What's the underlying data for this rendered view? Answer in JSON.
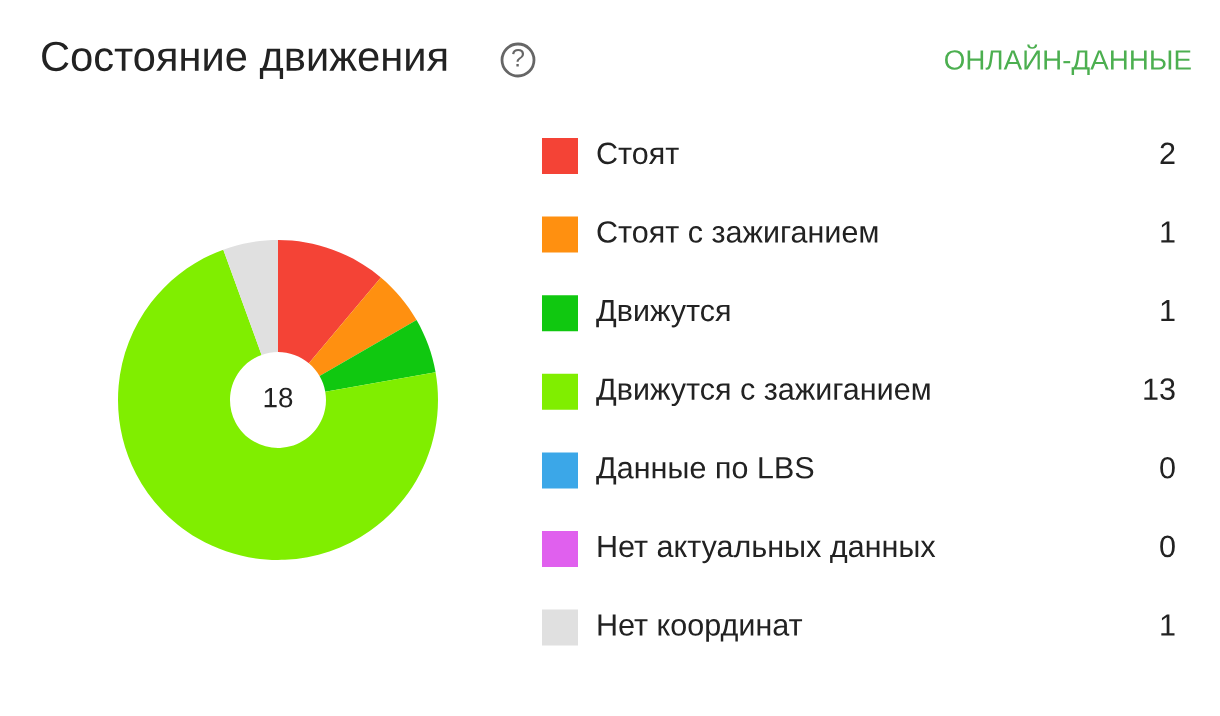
{
  "chart_data": {
    "type": "donut",
    "title": "Состояние движения",
    "categories": [
      "Стоят",
      "Стоят с зажиганием",
      "Движутся",
      "Движутся с зажиганием",
      "Данные по LBS",
      "Нет актуальных данных",
      "Нет координат"
    ],
    "values": [
      2,
      1,
      1,
      13,
      0,
      0,
      1
    ],
    "colors": [
      "#f44336",
      "#ff9010",
      "#10c810",
      "#80ee00",
      "#3ba7e8",
      "#e060ee",
      "#e0e0e0"
    ],
    "value_labels": [
      "2",
      "1",
      "1",
      "13",
      "0",
      "0",
      "1"
    ],
    "legend": "right",
    "annotations": [
      "18",
      "ОНЛАЙН-ДАННЫЕ",
      "?"
    ]
  }
}
